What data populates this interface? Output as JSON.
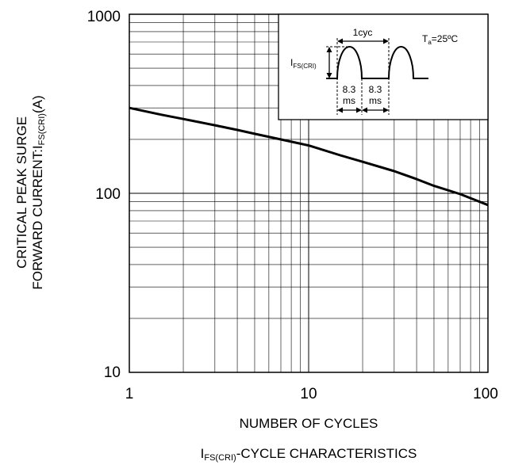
{
  "chart_data": {
    "type": "line",
    "x_scale": "log",
    "y_scale": "log",
    "xlim": [
      1,
      100
    ],
    "ylim": [
      10,
      1000
    ],
    "grid": true,
    "x_ticks": [
      "1",
      "10",
      "100"
    ],
    "y_ticks": [
      "10",
      "100",
      "1000"
    ],
    "xlabel": "NUMBER OF CYCLES",
    "ylabel_line1": "CRITICAL PEAK SURGE",
    "ylabel_line2_prefix": "FORWARD CURRENT:I",
    "ylabel_line2_sub": "FS(CRI)",
    "ylabel_line2_suffix": "(A)",
    "caption_prefix": "I",
    "caption_sub": "FS(CRI)",
    "caption_suffix": "-CYCLE  CHARACTERISTICS",
    "series": [
      {
        "x": [
          1,
          1.5,
          2,
          3,
          4,
          5,
          7,
          10,
          15,
          20,
          30,
          40,
          50,
          70,
          100
        ],
        "y": [
          300,
          275,
          260,
          240,
          226,
          215,
          200,
          185,
          163,
          150,
          133,
          120,
          110,
          99,
          86
        ]
      }
    ],
    "inset": {
      "period_label": "1cyc",
      "amplitude_label_prefix": "I",
      "amplitude_label_sub": "FS(CRI)",
      "pulse_width_value": "8.3",
      "pulse_width_unit": "ms",
      "gap_value": "8.3",
      "gap_unit": "ms",
      "condition_prefix": "T",
      "condition_sub": "a",
      "condition_suffix": "=25ºC"
    }
  }
}
